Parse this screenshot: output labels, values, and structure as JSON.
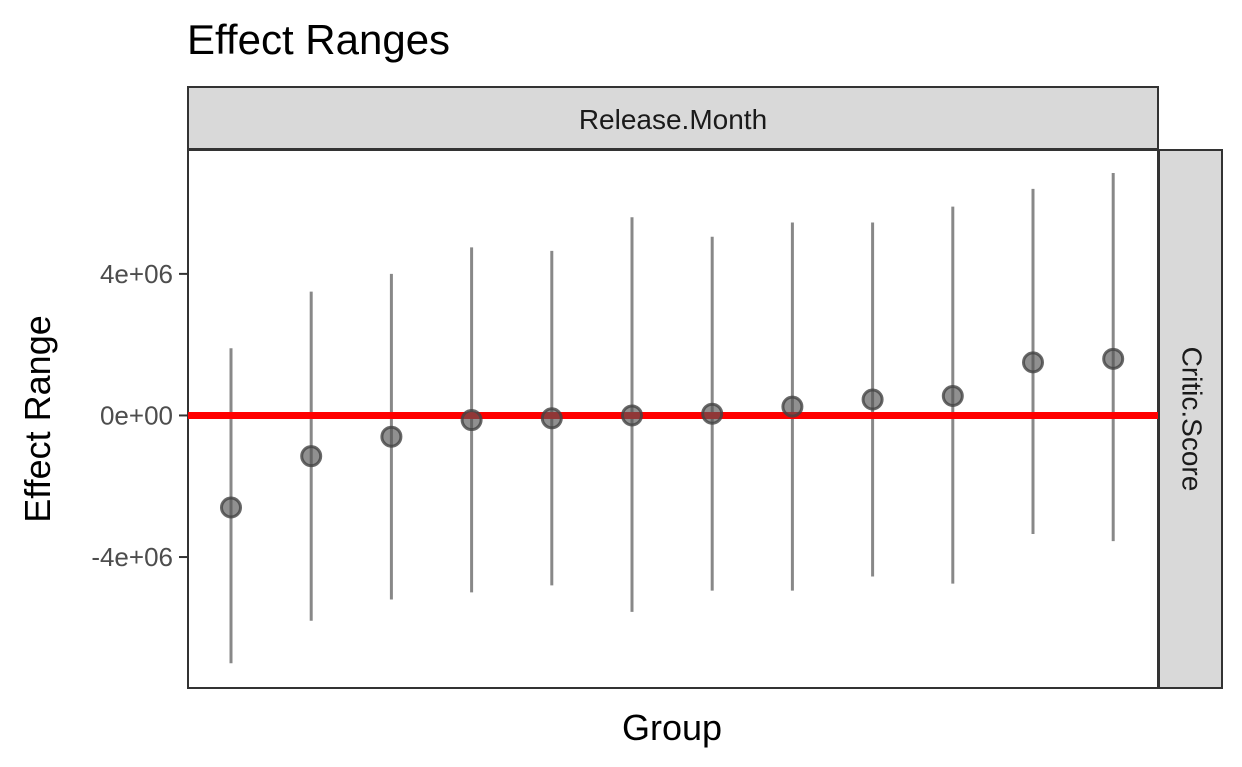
{
  "chart_data": {
    "type": "scatter",
    "title": "Effect Ranges",
    "xlabel": "Group",
    "ylabel": "Effect Range",
    "facet_top": "Release.Month",
    "facet_right": "Critic.Score",
    "ylim": [
      -7700000,
      7500000
    ],
    "yticks": [
      {
        "value": 4000000,
        "label": "4e+06"
      },
      {
        "value": 0,
        "label": "0e+00"
      },
      {
        "value": -4000000,
        "label": "-4e+06"
      }
    ],
    "reference_line": {
      "y": 0,
      "color": "#ff0000"
    },
    "points": [
      {
        "group": 1,
        "y": -2600000,
        "low": -7000000,
        "high": 1900000
      },
      {
        "group": 2,
        "y": -1150000,
        "low": -5800000,
        "high": 3500000
      },
      {
        "group": 3,
        "y": -600000,
        "low": -5200000,
        "high": 4000000
      },
      {
        "group": 4,
        "y": -130000,
        "low": -5000000,
        "high": 4750000
      },
      {
        "group": 5,
        "y": -80000,
        "low": -4800000,
        "high": 4650000
      },
      {
        "group": 6,
        "y": 0,
        "low": -5550000,
        "high": 5600000
      },
      {
        "group": 7,
        "y": 50000,
        "low": -4950000,
        "high": 5050000
      },
      {
        "group": 8,
        "y": 250000,
        "low": -4950000,
        "high": 5450000
      },
      {
        "group": 9,
        "y": 450000,
        "low": -4550000,
        "high": 5450000
      },
      {
        "group": 10,
        "y": 550000,
        "low": -4750000,
        "high": 5900000
      },
      {
        "group": 11,
        "y": 1500000,
        "low": -3350000,
        "high": 6400000
      },
      {
        "group": 12,
        "y": 1600000,
        "low": -3550000,
        "high": 6850000
      }
    ],
    "grid": false,
    "point_color": "#555555",
    "errorbar_color": "#888888"
  }
}
